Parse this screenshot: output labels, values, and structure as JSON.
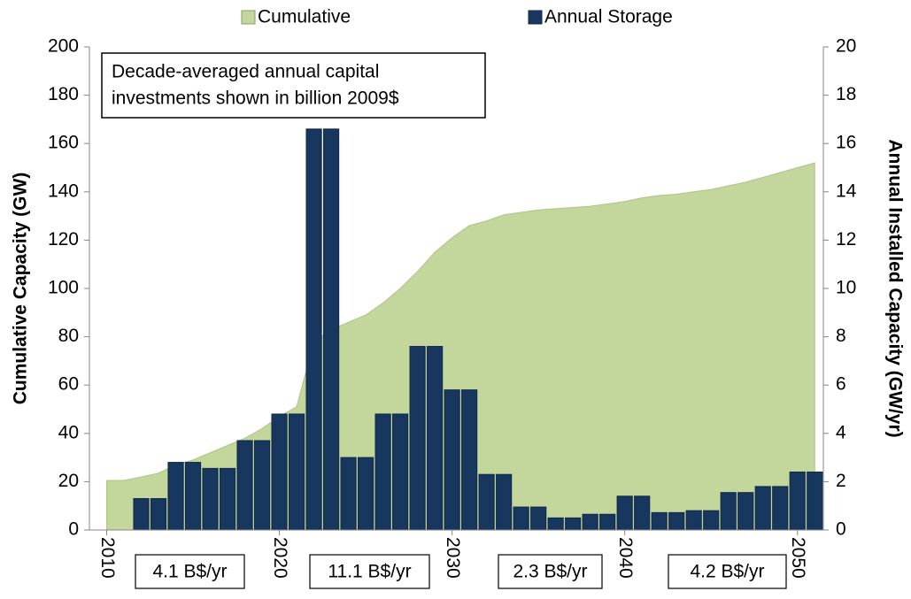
{
  "chart_data": {
    "type": "bar-area-combo",
    "legend": "top",
    "ylabel": "Cumulative Capacity (GW)",
    "y2label": "Annual Installed Capacity (GW/yr)",
    "annotation": [
      "Decade-averaged annual capital",
      "investments shown in billion 2009$"
    ],
    "decade_labels": [
      "4.1 B$/yr",
      "11.1 B$/yr",
      "2.3 B$/yr",
      "4.2 B$/yr"
    ],
    "xlim": [
      2009,
      2051.5
    ],
    "xticks": [
      2010,
      2020,
      2030,
      2040,
      2050
    ],
    "ylim": [
      0,
      200
    ],
    "yticks": [
      0,
      20,
      40,
      60,
      80,
      100,
      120,
      140,
      160,
      180,
      200
    ],
    "y2lim": [
      0,
      20
    ],
    "y2ticks": [
      0,
      2,
      4,
      6,
      8,
      10,
      12,
      14,
      16,
      18,
      20
    ],
    "series": [
      {
        "name": "Cumulative",
        "type": "area",
        "color": "#c3d69b",
        "x": [
          2010,
          2011,
          2012,
          2013,
          2014,
          2015,
          2016,
          2017,
          2018,
          2019,
          2020,
          2021,
          2022,
          2023,
          2024,
          2025,
          2026,
          2027,
          2028,
          2029,
          2030,
          2031,
          2032,
          2033,
          2034,
          2035,
          2036,
          2037,
          2038,
          2039,
          2040,
          2041,
          2042,
          2043,
          2044,
          2045,
          2046,
          2047,
          2048,
          2049,
          2050,
          2051
        ],
        "values": [
          20.5,
          20.5,
          22,
          23.5,
          27,
          29,
          32,
          35,
          38,
          42,
          47,
          51,
          78,
          83,
          86,
          89,
          94,
          100,
          107,
          115,
          121,
          126,
          128,
          130.5,
          131.5,
          132.5,
          133,
          133.5,
          134,
          135,
          136,
          137.5,
          138.5,
          139,
          140,
          141,
          142.5,
          144,
          146,
          148,
          150,
          152
        ]
      },
      {
        "name": "Annual Storage",
        "type": "bar",
        "axis": "y2",
        "color": "#17375e",
        "x": [
          2012,
          2013,
          2014,
          2015,
          2016,
          2017,
          2018,
          2019,
          2020,
          2021,
          2022,
          2023,
          2024,
          2025,
          2026,
          2027,
          2028,
          2029,
          2030,
          2031,
          2032,
          2033,
          2034,
          2035,
          2036,
          2037,
          2038,
          2039,
          2040,
          2041,
          2042,
          2043,
          2044,
          2045,
          2046,
          2047,
          2048,
          2049,
          2050,
          2051
        ],
        "values": [
          1.3,
          1.3,
          2.8,
          2.8,
          2.55,
          2.55,
          3.7,
          3.7,
          4.8,
          4.8,
          16.6,
          16.6,
          3.0,
          3.0,
          4.8,
          4.8,
          7.6,
          7.6,
          5.8,
          5.8,
          2.3,
          2.3,
          0.95,
          0.95,
          0.5,
          0.5,
          0.65,
          0.65,
          1.4,
          1.4,
          0.72,
          0.72,
          0.8,
          0.8,
          1.55,
          1.55,
          1.8,
          1.8,
          2.4,
          2.4
        ]
      }
    ]
  }
}
